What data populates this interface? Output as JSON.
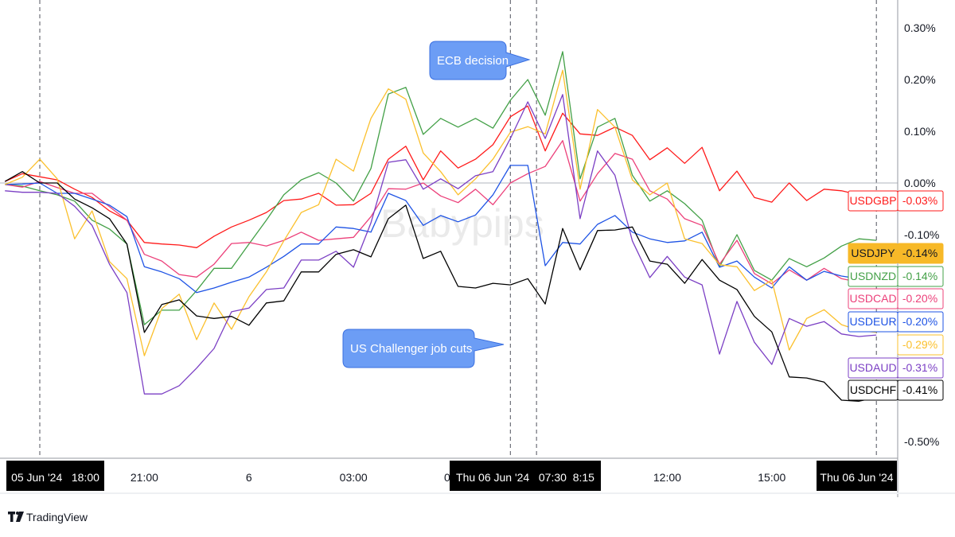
{
  "chart_data": {
    "type": "line",
    "title": "",
    "xlabel": "",
    "ylabel": "",
    "x_unit": "hours since 05 Jun '24 18:00",
    "ylim": [
      -0.55,
      0.33
    ],
    "xlim": [
      -1,
      24.5
    ],
    "grid": false,
    "x_hours": [
      -1,
      -0.5,
      0,
      0.5,
      1,
      1.5,
      2,
      2.5,
      3,
      3.5,
      4,
      4.5,
      5,
      5.5,
      6,
      6.5,
      7,
      7.5,
      8,
      8.5,
      9,
      9.5,
      10,
      10.5,
      11,
      11.5,
      12,
      12.5,
      13,
      13.5,
      14,
      14.5,
      15,
      15.5,
      16,
      16.5,
      17,
      17.5,
      18,
      18.5,
      19,
      19.5,
      20,
      20.5,
      21,
      21.5,
      22,
      22.5,
      23,
      23.5,
      24
    ],
    "series": [
      {
        "name": "USDGBP",
        "color": "#ff1a1a",
        "last": "-0.03%",
        "values": [
          0.003,
          0.018,
          0.012,
          0.006,
          -0.012,
          -0.028,
          -0.054,
          -0.072,
          -0.115,
          -0.118,
          -0.12,
          -0.125,
          -0.103,
          -0.085,
          -0.072,
          -0.057,
          -0.034,
          -0.031,
          -0.02,
          -0.043,
          -0.042,
          -0.02,
          0.046,
          0.071,
          0.006,
          0.062,
          0.029,
          0.046,
          0.074,
          0.128,
          0.149,
          0.062,
          0.135,
          0.095,
          0.092,
          0.108,
          0.092,
          0.045,
          0.068,
          0.038,
          0.069,
          -0.015,
          0.023,
          -0.028,
          -0.037,
          0.0,
          -0.034,
          -0.012,
          -0.015,
          -0.023,
          -0.03
        ]
      },
      {
        "name": "USDNZD",
        "color": "#43a047",
        "last": "-0.14%",
        "values": [
          -0.003,
          -0.006,
          -0.015,
          -0.023,
          -0.035,
          -0.072,
          -0.089,
          -0.118,
          -0.274,
          -0.246,
          -0.246,
          -0.208,
          -0.165,
          -0.165,
          -0.118,
          -0.072,
          -0.023,
          0.006,
          0.02,
          0.0,
          -0.035,
          0.028,
          0.172,
          0.185,
          0.094,
          0.125,
          0.108,
          0.125,
          0.106,
          0.16,
          0.2,
          0.131,
          0.254,
          0.008,
          0.108,
          0.125,
          0.015,
          -0.035,
          -0.015,
          -0.04,
          -0.072,
          -0.162,
          -0.1,
          -0.169,
          -0.188,
          -0.146,
          -0.162,
          -0.145,
          -0.122,
          -0.108,
          -0.111
        ]
      },
      {
        "name": "USDCAD",
        "color": "#ec407a",
        "last": "-0.20%",
        "values": [
          -0.003,
          -0.008,
          0.003,
          -0.009,
          -0.02,
          -0.02,
          -0.046,
          -0.072,
          -0.138,
          -0.151,
          -0.177,
          -0.182,
          -0.157,
          -0.117,
          -0.115,
          -0.122,
          -0.111,
          -0.095,
          -0.111,
          -0.108,
          -0.105,
          -0.065,
          -0.011,
          -0.012,
          0.0,
          -0.025,
          -0.038,
          -0.012,
          -0.042,
          0.0,
          0.018,
          0.032,
          0.082,
          -0.035,
          0.018,
          0.057,
          0.046,
          -0.015,
          -0.031,
          -0.069,
          -0.082,
          -0.157,
          -0.111,
          -0.175,
          -0.195,
          -0.168,
          -0.188,
          -0.165,
          -0.185,
          -0.192,
          -0.2
        ]
      },
      {
        "name": "USDEUR",
        "color": "#1e53e5",
        "last": "-0.20%",
        "values": [
          -0.003,
          -0.002,
          0.0,
          -0.02,
          -0.02,
          -0.031,
          -0.043,
          -0.065,
          -0.162,
          -0.172,
          -0.185,
          -0.212,
          -0.203,
          -0.192,
          -0.182,
          -0.163,
          -0.142,
          -0.118,
          -0.118,
          -0.085,
          -0.088,
          -0.095,
          -0.02,
          -0.034,
          -0.082,
          -0.063,
          -0.075,
          -0.062,
          -0.023,
          0.034,
          0.034,
          -0.16,
          -0.115,
          -0.118,
          -0.08,
          -0.063,
          -0.095,
          -0.108,
          -0.115,
          -0.112,
          -0.095,
          -0.163,
          -0.151,
          -0.182,
          -0.203,
          -0.162,
          -0.188,
          -0.171,
          -0.18,
          -0.185,
          -0.197
        ]
      },
      {
        "name": "",
        "color": "#fbc02d",
        "last": "-0.29%",
        "values": [
          -0.003,
          0.011,
          0.046,
          0.008,
          -0.108,
          -0.054,
          -0.152,
          -0.185,
          -0.334,
          -0.243,
          -0.215,
          -0.303,
          -0.232,
          -0.283,
          -0.22,
          -0.172,
          -0.112,
          -0.057,
          -0.042,
          0.046,
          0.023,
          0.125,
          0.182,
          0.162,
          0.058,
          0.022,
          -0.023,
          0.008,
          0.046,
          0.098,
          0.109,
          0.095,
          0.218,
          -0.012,
          0.142,
          0.108,
          0.006,
          -0.023,
          0.0,
          -0.108,
          -0.117,
          -0.158,
          -0.162,
          -0.208,
          -0.188,
          -0.323,
          -0.262,
          -0.245,
          -0.274,
          -0.285,
          -0.289
        ]
      },
      {
        "name": "USDAUD",
        "color": "#7b3fc4",
        "last": "-0.31%",
        "values": [
          -0.015,
          -0.018,
          -0.018,
          -0.02,
          -0.045,
          -0.082,
          -0.157,
          -0.212,
          -0.408,
          -0.408,
          -0.392,
          -0.358,
          -0.32,
          -0.249,
          -0.242,
          -0.206,
          -0.203,
          -0.149,
          -0.149,
          -0.132,
          -0.163,
          -0.077,
          0.04,
          0.045,
          -0.012,
          0.008,
          -0.011,
          0.014,
          0.022,
          0.086,
          0.157,
          0.086,
          0.171,
          -0.069,
          0.062,
          0.015,
          -0.112,
          -0.183,
          -0.142,
          -0.182,
          -0.197,
          -0.331,
          -0.229,
          -0.308,
          -0.351,
          -0.262,
          -0.277,
          -0.268,
          -0.292,
          -0.297,
          -0.294
        ]
      },
      {
        "name": "USDCHF",
        "color": "#000000",
        "last": "-0.41%",
        "values": [
          0.003,
          0.022,
          0.0,
          0.0,
          -0.031,
          -0.048,
          -0.069,
          -0.118,
          -0.289,
          -0.235,
          -0.226,
          -0.257,
          -0.262,
          -0.258,
          -0.275,
          -0.232,
          -0.228,
          -0.172,
          -0.172,
          -0.138,
          -0.129,
          -0.143,
          -0.069,
          -0.043,
          -0.146,
          -0.132,
          -0.2,
          -0.203,
          -0.194,
          -0.197,
          -0.185,
          -0.234,
          -0.088,
          -0.168,
          -0.092,
          -0.091,
          -0.085,
          -0.151,
          -0.157,
          -0.194,
          -0.148,
          -0.188,
          -0.206,
          -0.258,
          -0.288,
          -0.375,
          -0.377,
          -0.385,
          -0.42,
          -0.422,
          -0.415
        ]
      }
    ],
    "price_labels": [
      {
        "name": "USDGBP",
        "value": "-0.03%",
        "color": "#ff1a1a",
        "filled": false
      },
      {
        "name": "USDJPY",
        "value": "-0.14%",
        "color": "#f7b928",
        "filled": true
      },
      {
        "name": "USDNZD",
        "value": "-0.14%",
        "color": "#43a047",
        "filled": false
      },
      {
        "name": "USDCAD",
        "value": "-0.20%",
        "color": "#ec407a",
        "filled": false
      },
      {
        "name": "USDEUR",
        "value": "-0.20%",
        "color": "#1e53e5",
        "filled": false
      },
      {
        "name": "",
        "value": "-0.29%",
        "color": "#fbc02d",
        "filled": false
      },
      {
        "name": "USDAUD",
        "value": "-0.31%",
        "color": "#7b3fc4",
        "filled": false
      },
      {
        "name": "USDCHF",
        "value": "-0.41%",
        "color": "#000000",
        "filled": false
      }
    ],
    "y_ticks": [
      {
        "value": 0.3,
        "label": "0.30%"
      },
      {
        "value": 0.2,
        "label": "0.20%"
      },
      {
        "value": 0.1,
        "label": "0.10%"
      },
      {
        "value": 0.0,
        "label": "0.00%"
      },
      {
        "value": -0.1,
        "label": "-0.10%"
      },
      {
        "value": -0.5,
        "label": "-0.50%"
      }
    ],
    "x_ticks": [
      {
        "hour": 3,
        "label": "21:00"
      },
      {
        "hour": 6,
        "label": "6"
      },
      {
        "hour": 9,
        "label": "03:00"
      },
      {
        "hour": 18,
        "label": "12:00"
      },
      {
        "hour": 21,
        "label": "15:00"
      }
    ],
    "x_ticks_partial": "0",
    "x_highlight_labels": [
      {
        "hour": 0,
        "label": "05 Jun '24   18:00"
      },
      {
        "hour": 13.5,
        "label": "Thu 06 Jun '24   07:30  8:15"
      },
      {
        "hour": 24,
        "label": "Thu 06 Jun '24"
      }
    ],
    "vertical_markers_hours": [
      0,
      13.5,
      14.25,
      24
    ],
    "annotations": [
      {
        "text": "ECB decision",
        "target_hour": 14.25
      },
      {
        "text": "US Challenger job cuts",
        "target_hour": 13.5
      }
    ],
    "watermark": "Babypips"
  },
  "footer": {
    "brand": "TradingView"
  }
}
